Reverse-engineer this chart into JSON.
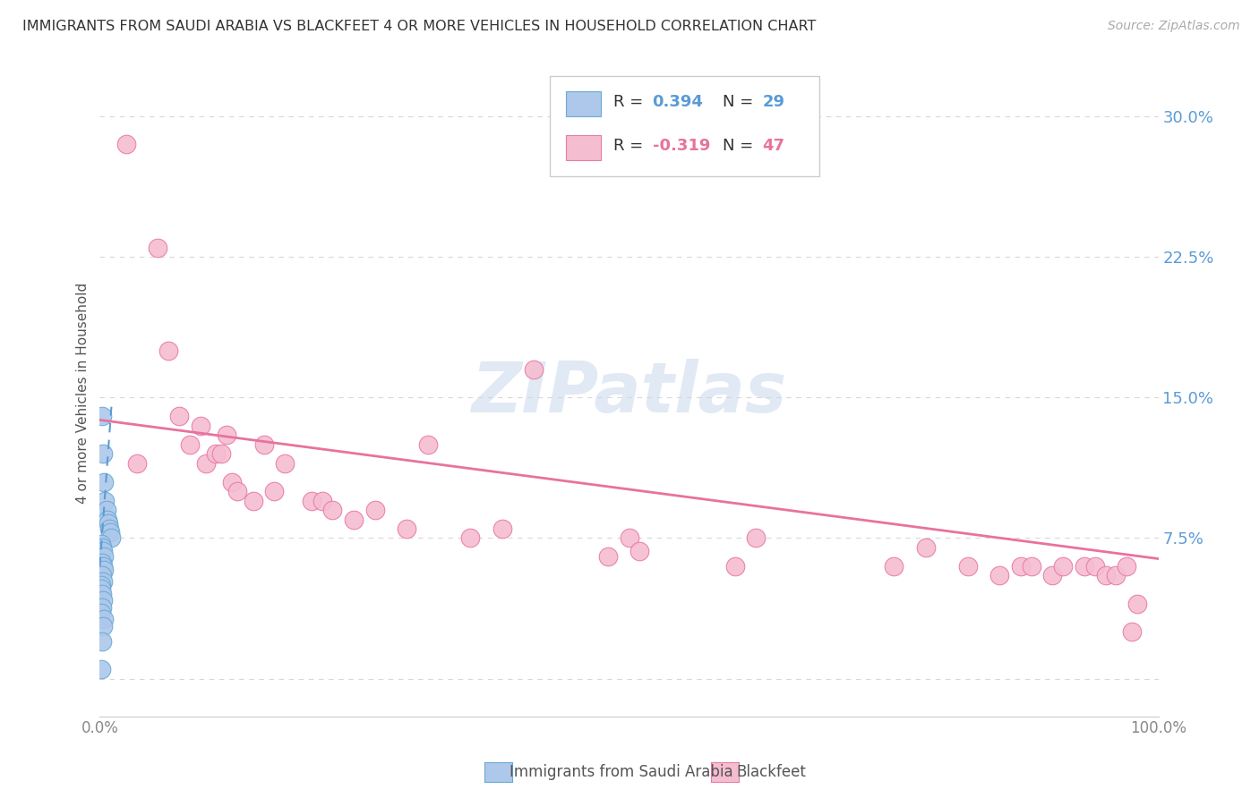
{
  "title": "IMMIGRANTS FROM SAUDI ARABIA VS BLACKFEET 4 OR MORE VEHICLES IN HOUSEHOLD CORRELATION CHART",
  "source": "Source: ZipAtlas.com",
  "ylabel": "4 or more Vehicles in Household",
  "series1_label": "Immigrants from Saudi Arabia",
  "series1_R": "0.394",
  "series1_N": "29",
  "series1_color": "#adc8eb",
  "series1_edge_color": "#6aaad4",
  "series1_line_color": "#5b9bd5",
  "series2_label": "Blackfeet",
  "series2_R": "-0.319",
  "series2_N": "47",
  "series2_color": "#f5bdd0",
  "series2_edge_color": "#e87aaa",
  "series2_line_color": "#e8729e",
  "background_color": "#ffffff",
  "grid_color": "#d8d8d8",
  "xlim": [
    0.0,
    1.0
  ],
  "ylim": [
    -0.02,
    0.325
  ],
  "yticks": [
    0.0,
    0.075,
    0.15,
    0.225,
    0.3
  ],
  "ytick_labels": [
    "",
    "7.5%",
    "15.0%",
    "22.5%",
    "30.0%"
  ],
  "saudi_x": [
    0.002,
    0.003,
    0.004,
    0.005,
    0.006,
    0.007,
    0.008,
    0.009,
    0.01,
    0.011,
    0.001,
    0.002,
    0.003,
    0.004,
    0.002,
    0.003,
    0.004,
    0.002,
    0.003,
    0.001,
    0.001,
    0.002,
    0.003,
    0.002,
    0.001,
    0.004,
    0.003,
    0.002,
    0.001
  ],
  "saudi_y": [
    0.14,
    0.12,
    0.105,
    0.095,
    0.09,
    0.085,
    0.083,
    0.08,
    0.078,
    0.075,
    0.072,
    0.07,
    0.068,
    0.065,
    0.062,
    0.06,
    0.058,
    0.055,
    0.052,
    0.05,
    0.048,
    0.045,
    0.042,
    0.038,
    0.035,
    0.032,
    0.028,
    0.02,
    0.005
  ],
  "saudi_trendline_x": [
    0.0,
    0.011
  ],
  "saudi_trendline_y": [
    0.06,
    0.145
  ],
  "blackfeet_x": [
    0.025,
    0.035,
    0.055,
    0.065,
    0.075,
    0.085,
    0.095,
    0.1,
    0.11,
    0.115,
    0.12,
    0.125,
    0.13,
    0.145,
    0.155,
    0.165,
    0.175,
    0.2,
    0.21,
    0.22,
    0.24,
    0.26,
    0.29,
    0.31,
    0.35,
    0.38,
    0.41,
    0.48,
    0.5,
    0.51,
    0.6,
    0.62,
    0.75,
    0.78,
    0.82,
    0.85,
    0.87,
    0.88,
    0.9,
    0.91,
    0.93,
    0.94,
    0.95,
    0.96,
    0.97,
    0.975,
    0.98
  ],
  "blackfeet_y": [
    0.285,
    0.115,
    0.23,
    0.175,
    0.14,
    0.125,
    0.135,
    0.115,
    0.12,
    0.12,
    0.13,
    0.105,
    0.1,
    0.095,
    0.125,
    0.1,
    0.115,
    0.095,
    0.095,
    0.09,
    0.085,
    0.09,
    0.08,
    0.125,
    0.075,
    0.08,
    0.165,
    0.065,
    0.075,
    0.068,
    0.06,
    0.075,
    0.06,
    0.07,
    0.06,
    0.055,
    0.06,
    0.06,
    0.055,
    0.06,
    0.06,
    0.06,
    0.055,
    0.055,
    0.06,
    0.025,
    0.04
  ],
  "blackfeet_trendline_x": [
    0.0,
    1.0
  ],
  "blackfeet_trendline_y": [
    0.138,
    0.064
  ]
}
